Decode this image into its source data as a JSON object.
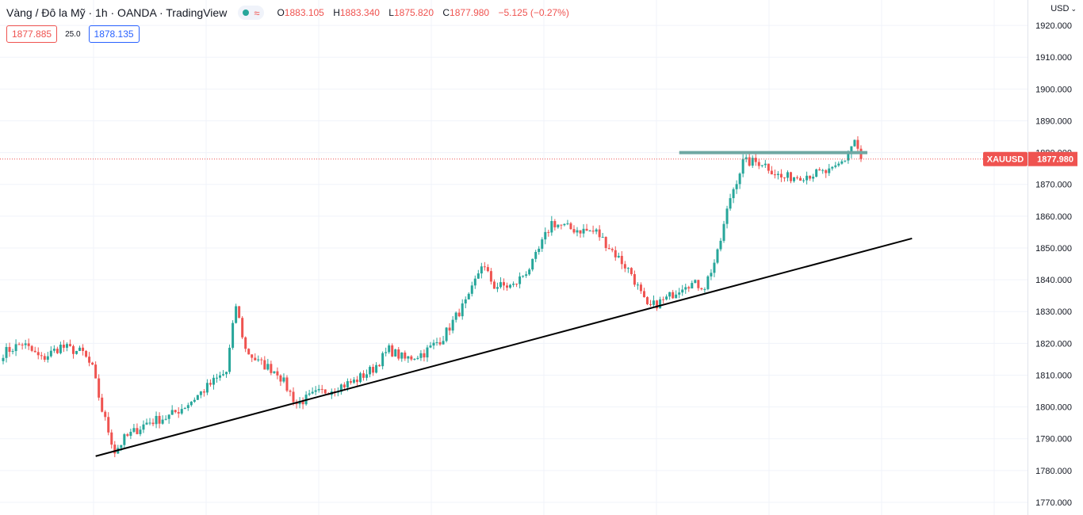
{
  "header": {
    "symbol_title": "Vàng / Đô la Mỹ · 1h · OANDA · TradingView",
    "ohlc": {
      "o_label": "O",
      "o": "1883.105",
      "h_label": "H",
      "h": "1883.340",
      "l_label": "L",
      "l": "1875.820",
      "c_label": "C",
      "c": "1877.980",
      "change": "−5.125 (−0.27%)"
    },
    "sell_price": "1877.885",
    "spread": "25.0",
    "buy_price": "1878.135",
    "currency": "USD"
  },
  "colors": {
    "up": "#26a69a",
    "down": "#ef5350",
    "trendline": "#000000",
    "resistance": "#6fa8a3",
    "label_bg": "#ef5350"
  },
  "chart_data": {
    "type": "candlestick",
    "symbol": "XAUUSD",
    "last_price_label": "1877.980",
    "last_price": 1877.98,
    "ylim": [
      1766,
      1928
    ],
    "y_ticks": [
      1770,
      1780,
      1790,
      1800,
      1810,
      1820,
      1830,
      1840,
      1850,
      1860,
      1870,
      1880,
      1890,
      1900,
      1910,
      1920
    ],
    "y_tick_labels": [
      "1770.000",
      "1780.000",
      "1790.000",
      "1800.000",
      "1810.000",
      "1820.000",
      "1830.000",
      "1840.000",
      "1850.000",
      "1860.000",
      "1870.000",
      "1880.000",
      "1890.000",
      "1900.000",
      "1910.000",
      "1920.000"
    ],
    "grid": true,
    "bar_count": 270,
    "anchors": [
      [
        0,
        1817
      ],
      [
        6,
        1820
      ],
      [
        12,
        1815
      ],
      [
        18,
        1819
      ],
      [
        25,
        1817
      ],
      [
        28,
        1812
      ],
      [
        31,
        1799
      ],
      [
        35,
        1786
      ],
      [
        38,
        1790
      ],
      [
        45,
        1795
      ],
      [
        52,
        1797
      ],
      [
        58,
        1801
      ],
      [
        66,
        1808
      ],
      [
        70,
        1811
      ],
      [
        73,
        1832
      ],
      [
        76,
        1818
      ],
      [
        80,
        1814
      ],
      [
        86,
        1811
      ],
      [
        92,
        1801
      ],
      [
        98,
        1804
      ],
      [
        104,
        1806
      ],
      [
        110,
        1808
      ],
      [
        116,
        1812
      ],
      [
        121,
        1818
      ],
      [
        126,
        1815
      ],
      [
        132,
        1817
      ],
      [
        138,
        1822
      ],
      [
        143,
        1830
      ],
      [
        146,
        1834
      ],
      [
        150,
        1845
      ],
      [
        154,
        1838
      ],
      [
        160,
        1838
      ],
      [
        166,
        1845
      ],
      [
        172,
        1858
      ],
      [
        178,
        1856
      ],
      [
        186,
        1855
      ],
      [
        192,
        1848
      ],
      [
        197,
        1842
      ],
      [
        202,
        1831
      ],
      [
        208,
        1834
      ],
      [
        214,
        1839
      ],
      [
        220,
        1838
      ],
      [
        224,
        1848
      ],
      [
        228,
        1866
      ],
      [
        232,
        1877
      ],
      [
        238,
        1877
      ],
      [
        244,
        1872
      ],
      [
        252,
        1873
      ],
      [
        260,
        1874
      ],
      [
        264,
        1878
      ],
      [
        267,
        1884
      ],
      [
        269,
        1878
      ]
    ],
    "trendline": {
      "x": [
        29,
        285
      ],
      "y": [
        1784.5,
        1853.0
      ]
    },
    "resistance": {
      "x": [
        212,
        271
      ],
      "y": 1880.0
    }
  }
}
